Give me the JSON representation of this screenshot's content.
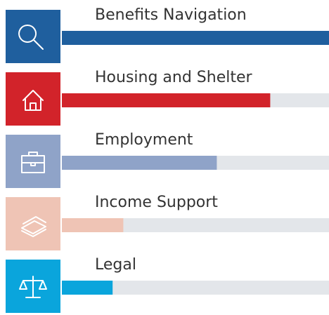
{
  "chart_data": {
    "type": "bar",
    "orientation": "horizontal",
    "categories": [
      "Benefits Navigation",
      "Housing and Shelter",
      "Employment",
      "Income Support",
      "Legal"
    ],
    "values": [
      100,
      78,
      58,
      23,
      19
    ],
    "colors": [
      "#1f5f9e",
      "#d2232a",
      "#8fa3c8",
      "#efc4b5",
      "#0aa5dc"
    ],
    "track_color": "#e3e6ea",
    "xlim": [
      0,
      100
    ]
  }
}
